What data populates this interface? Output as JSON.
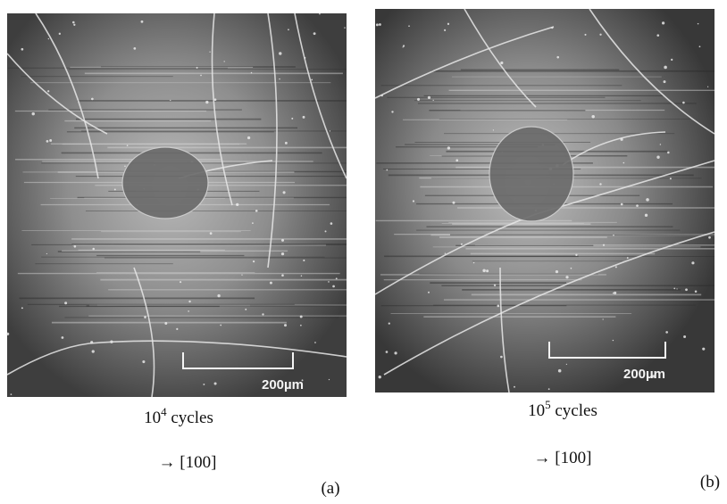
{
  "panels": [
    {
      "label": "(a)",
      "cycles_base": "10",
      "cycles_exponent": "4",
      "cycles_text": " cycles",
      "direction": "→ [100]",
      "scale_bar": "200µm"
    },
    {
      "label": "(b)",
      "cycles_base": "10",
      "cycles_exponent": "5",
      "cycles_text": " cycles",
      "direction": "→ [100]",
      "scale_bar": "200µm"
    }
  ]
}
